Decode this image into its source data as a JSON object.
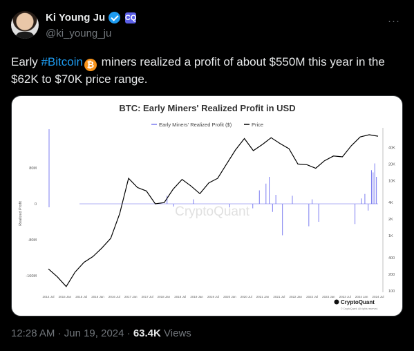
{
  "author": {
    "display_name": "Ki Young Ju",
    "handle": "@ki_young_ju",
    "affiliation_badge": "CQ"
  },
  "tweet": {
    "text_before": "Early ",
    "hashtag": "#Bitcoin",
    "text_after": " miners realized a profit of about $550M this year in the $62K to $70K price range."
  },
  "more_menu": "···",
  "chart_data": {
    "type": "line",
    "title": "BTC: Early Miners' Realized Profit in USD",
    "legend": [
      "Early Miners' Realized Profit ($)",
      "Price"
    ],
    "left_axis_label": "Realized Profit",
    "left_ticks": [
      "80M",
      "0",
      "-80M",
      "-160M"
    ],
    "right_ticks": [
      "40K",
      "20K",
      "10K",
      "4K",
      "2K",
      "1K",
      "400",
      "200",
      "100"
    ],
    "x_ticks": [
      "2014 Jul",
      "2015 Jan",
      "2015 Jul",
      "2016 Jan",
      "2016 Jul",
      "2017 Jan",
      "2017 Jul",
      "2018 Jan",
      "2018 Jul",
      "2019 Jan",
      "2019 Jul",
      "2020 Jan",
      "2020 Jul",
      "2021 Jan",
      "2021 Jul",
      "2022 Jan",
      "2022 Jul",
      "2023 Jan",
      "2023 Jul",
      "2024 Jan",
      "2024 Jul"
    ],
    "watermark": "CryptoQuant",
    "brand": "CryptoQuant",
    "brand_sub": "© CryptoQuant. All rights reserved.",
    "price_series": [
      250,
      180,
      120,
      220,
      330,
      420,
      600,
      900,
      2500,
      11000,
      7500,
      6500,
      3800,
      4000,
      7000,
      10500,
      8000,
      5800,
      9100,
      11000,
      20000,
      36000,
      58000,
      35000,
      45000,
      60000,
      47000,
      38000,
      20000,
      19500,
      16800,
      23000,
      28000,
      27000,
      43000,
      62000,
      68000,
      64000
    ],
    "colors": {
      "price": "#000000",
      "profit": "#7b7cf0"
    }
  },
  "footer": {
    "time": "12:28 AM",
    "separator": "·",
    "date": "Jun 19, 2024",
    "views_count": "63.4K",
    "views_label": "Views"
  }
}
